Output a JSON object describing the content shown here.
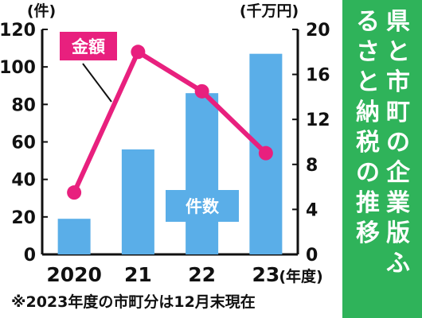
{
  "chart_data": {
    "type": "bar+line",
    "title": "県と市町の企業版ふるさと納税の推移",
    "categories": [
      "2020",
      "21",
      "22",
      "23"
    ],
    "xunit": "(年度)",
    "series": [
      {
        "name": "件数",
        "kind": "bar",
        "axis": "left",
        "unit": "(件)",
        "color": "#5aaee8",
        "values": [
          19,
          56,
          86,
          107
        ]
      },
      {
        "name": "金額",
        "kind": "line",
        "axis": "right",
        "unit": "(千万円)",
        "color": "#e8207e",
        "values": [
          5.5,
          18,
          14.5,
          9
        ]
      }
    ],
    "ylim_left": [
      0,
      120
    ],
    "yticks_left": [
      "0",
      "20",
      "40",
      "60",
      "80",
      "100",
      "120"
    ],
    "ylim_right": [
      0,
      20
    ],
    "yticks_right": [
      "0",
      "4",
      "8",
      "12",
      "16",
      "20"
    ],
    "grid": false,
    "note": "※2023年度の市町分は12月末現在"
  },
  "colors": {
    "title_panel": "#2fb35a",
    "axis": "#111111"
  }
}
